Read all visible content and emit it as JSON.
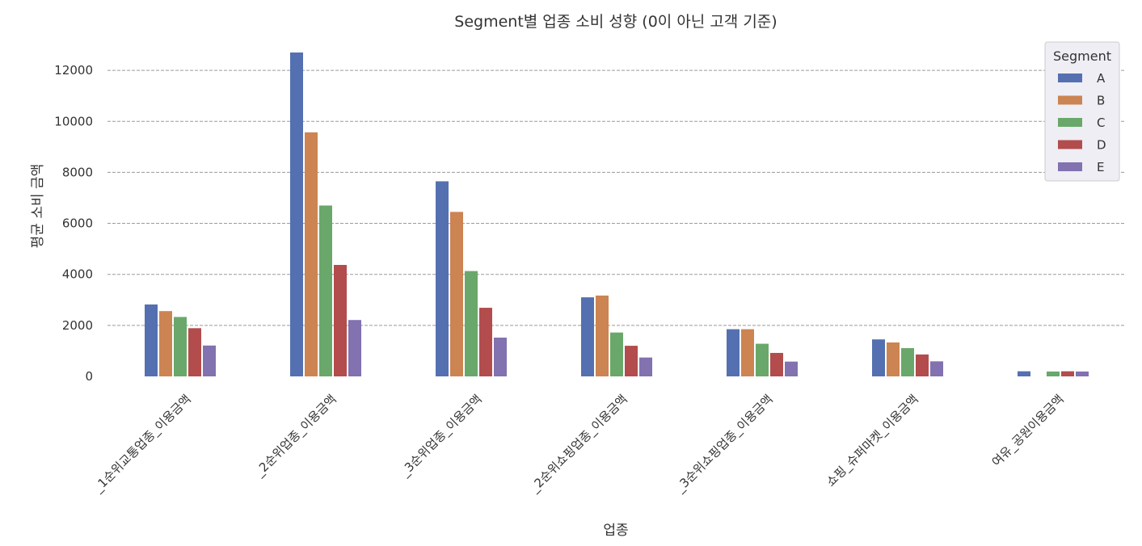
{
  "chart_data": {
    "type": "bar",
    "title": "Segment별 업종 소비 성향 (0이 아닌 고객 기준)",
    "xlabel": "업종",
    "ylabel": "평균 소비 금액",
    "categories": [
      "_1순위교통업종_이용금액",
      "_2순위업종_이용금액",
      "_3순위업종_이용금액",
      "_2순위쇼핑업종_이용금액",
      "_3순위쇼핑업종_이용금액",
      "쇼핑_슈퍼마켓_이용금액",
      "여유_공원이용금액"
    ],
    "series": [
      {
        "name": "A",
        "color": "#5470b0",
        "values": [
          2820,
          12700,
          7650,
          3100,
          1850,
          1450,
          200
        ]
      },
      {
        "name": "B",
        "color": "#cc8452",
        "values": [
          2560,
          9570,
          6450,
          3170,
          1850,
          1330,
          0
        ]
      },
      {
        "name": "C",
        "color": "#69a86a",
        "values": [
          2330,
          6700,
          4130,
          1720,
          1280,
          1110,
          190
        ]
      },
      {
        "name": "D",
        "color": "#b24c4d",
        "values": [
          1890,
          4370,
          2690,
          1200,
          920,
          860,
          200
        ]
      },
      {
        "name": "E",
        "color": "#8272b0",
        "values": [
          1210,
          2210,
          1520,
          740,
          580,
          590,
          190
        ]
      }
    ],
    "yticks": [
      0,
      2000,
      4000,
      6000,
      8000,
      10000,
      12000
    ],
    "ylim": [
      0,
      12700
    ],
    "grid": "horizontal dashed",
    "legend": {
      "title": "Segment",
      "position": "top-right"
    }
  }
}
